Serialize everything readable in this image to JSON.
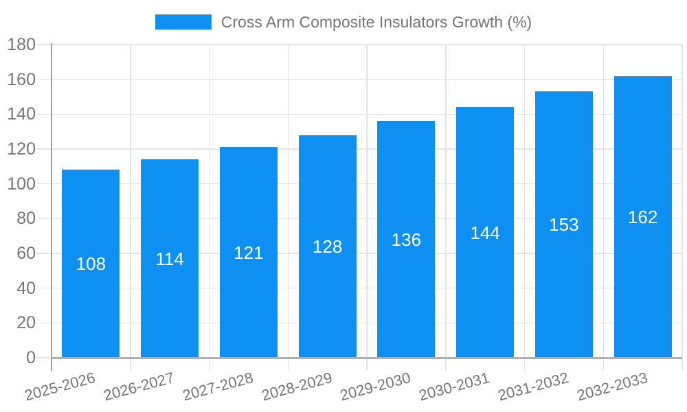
{
  "chart_data": {
    "type": "bar",
    "legend": "Cross Arm Composite Insulators Growth (%)",
    "legend_position": "top-center",
    "categories": [
      "2025-2026",
      "2026-2027",
      "2027-2028",
      "2028-2029",
      "2029-2030",
      "2030-2031",
      "2031-2032",
      "2032-2033"
    ],
    "values": [
      108,
      114,
      121,
      128,
      136,
      144,
      153,
      162
    ],
    "xlabel": "",
    "ylabel": "",
    "ylim": [
      0,
      180
    ],
    "ytick_step": 20,
    "yticks": [
      0,
      20,
      40,
      60,
      80,
      100,
      120,
      140,
      160,
      180
    ],
    "grid": true,
    "value_labels": "inside-center",
    "colors": {
      "bar": "#0d90f2",
      "axis_text": "#757575",
      "value_label": "#ffffff",
      "gridline": "#e3e3e3",
      "axis_line": "#9e9e9e",
      "baseline": "#aeaeae",
      "background": "#ffffff"
    }
  }
}
